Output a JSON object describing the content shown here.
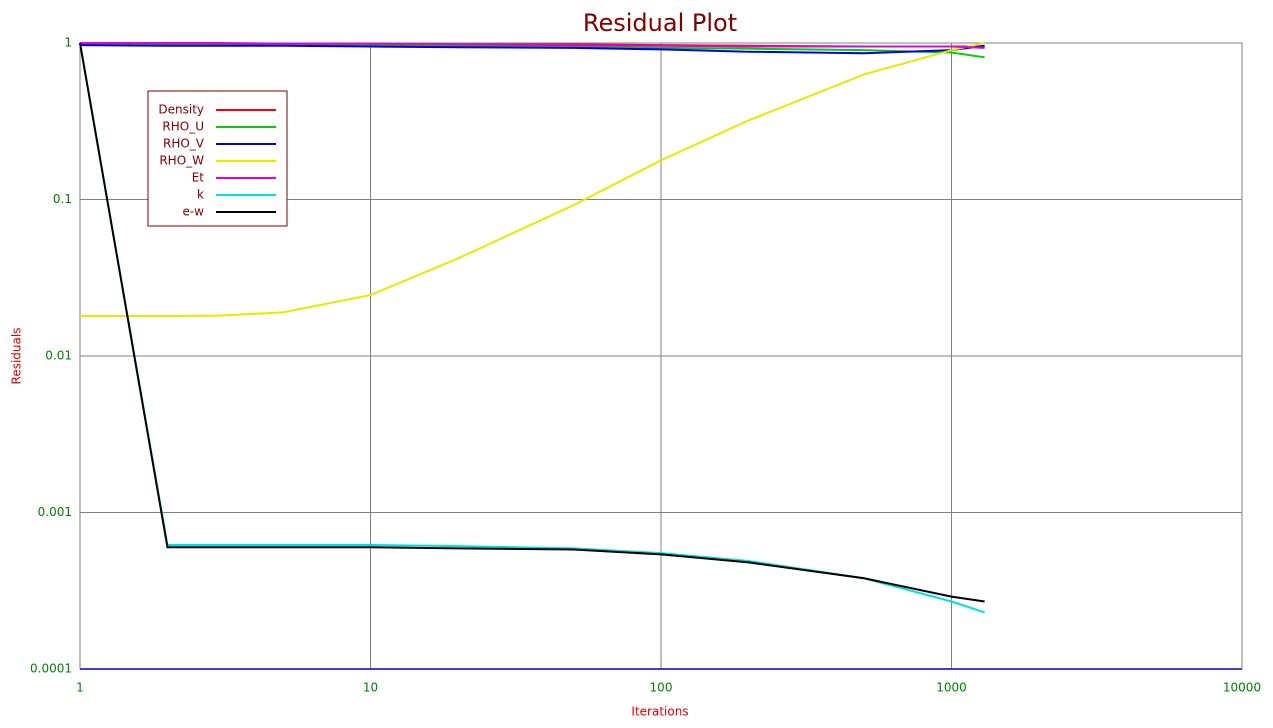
{
  "chart_data": {
    "type": "line",
    "title": "Residual Plot",
    "x_label": "Iterations",
    "y_label": "Residuals",
    "x": [
      1,
      2,
      3,
      5,
      10,
      20,
      50,
      100,
      200,
      500,
      1000,
      1300
    ],
    "series": [
      {
        "name": "Density",
        "color": "#ff0000",
        "values": [
          1,
          0.99,
          0.99,
          0.99,
          0.99,
          0.98,
          0.98,
          0.97,
          0.96,
          0.95,
          0.95,
          0.95
        ]
      },
      {
        "name": "RHO_U",
        "color": "#00d000",
        "values": [
          0.98,
          0.97,
          0.97,
          0.97,
          0.97,
          0.96,
          0.95,
          0.93,
          0.92,
          0.9,
          0.87,
          0.81
        ]
      },
      {
        "name": "RHO_V",
        "color": "#0000e0",
        "values": [
          0.97,
          0.96,
          0.96,
          0.96,
          0.95,
          0.94,
          0.93,
          0.91,
          0.88,
          0.86,
          0.9,
          0.96
        ]
      },
      {
        "name": "RHO_W",
        "color": "#e8e800",
        "values": [
          0.018,
          0.018,
          0.0181,
          0.019,
          0.0245,
          0.042,
          0.092,
          0.178,
          0.32,
          0.63,
          0.9,
          1
        ]
      },
      {
        "name": "Et",
        "color": "#e000e0",
        "values": [
          1,
          1,
          1,
          0.99,
          0.99,
          0.98,
          0.97,
          0.96,
          0.95,
          0.95,
          0.95,
          0.93
        ]
      },
      {
        "name": "k",
        "color": "#00e0e0",
        "values": [
          1,
          0.00062,
          0.00062,
          0.00062,
          0.00062,
          0.00061,
          0.00059,
          0.00055,
          0.00049,
          0.00038,
          0.00027,
          0.00023
        ]
      },
      {
        "name": "e-w",
        "color": "#000000",
        "values": [
          1,
          0.0006,
          0.0006,
          0.0006,
          0.0006,
          0.00059,
          0.00058,
          0.00054,
          0.00048,
          0.00038,
          0.00029,
          0.00027
        ]
      }
    ],
    "xlim": [
      1,
      10000
    ],
    "xticks": [
      1,
      10,
      100,
      1000,
      10000
    ],
    "ylim": [
      0.0001,
      1
    ],
    "yticks": [
      0.0001,
      0.001,
      0.01,
      0.1,
      1
    ],
    "xscale": "log",
    "yscale": "log",
    "grid": true,
    "legend": "upper left"
  }
}
